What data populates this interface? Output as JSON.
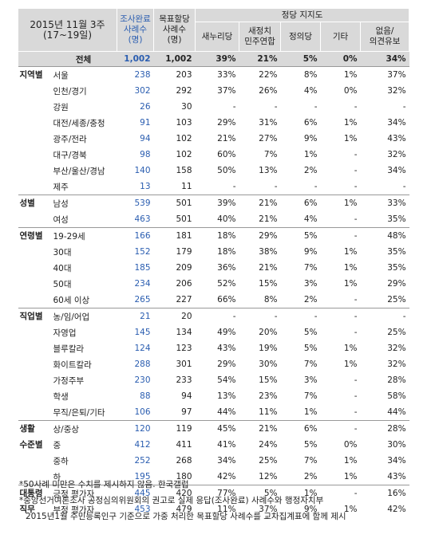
{
  "header": {
    "period": [
      "2015년 11월 3주",
      "(17~19일)"
    ],
    "completed": [
      "조사완료",
      "사례수",
      "(명)"
    ],
    "target": [
      "목표할당",
      "사례수",
      "(명)"
    ],
    "group_title": "정당 지지도",
    "parties": [
      "새누리당",
      "새정치\n민주연합",
      "정의당",
      "기타",
      "없음/\n의견유보"
    ]
  },
  "total": [
    "전체",
    "1,002",
    "1,002",
    "39%",
    "21%",
    "5%",
    "0%",
    "34%"
  ],
  "groups": [
    {
      "label": [
        "지역별"
      ],
      "rows": [
        [
          "서울",
          "238",
          "203",
          "33%",
          "22%",
          "8%",
          "1%",
          "37%"
        ],
        [
          "인천/경기",
          "302",
          "292",
          "37%",
          "26%",
          "4%",
          "0%",
          "32%"
        ],
        [
          "강원",
          "26",
          "30",
          "-",
          "-",
          "-",
          "-",
          "-"
        ],
        [
          "대전/세종/충청",
          "91",
          "103",
          "29%",
          "31%",
          "6%",
          "1%",
          "34%"
        ],
        [
          "광주/전라",
          "94",
          "102",
          "21%",
          "27%",
          "9%",
          "1%",
          "43%"
        ],
        [
          "대구/경북",
          "98",
          "102",
          "60%",
          "7%",
          "1%",
          "-",
          "32%"
        ],
        [
          "부산/울산/경남",
          "140",
          "158",
          "50%",
          "13%",
          "2%",
          "-",
          "34%"
        ],
        [
          "제주",
          "13",
          "11",
          "-",
          "-",
          "-",
          "-",
          "-"
        ]
      ]
    },
    {
      "label": [
        "성별"
      ],
      "rows": [
        [
          "남성",
          "539",
          "501",
          "39%",
          "21%",
          "6%",
          "1%",
          "33%"
        ],
        [
          "여성",
          "463",
          "501",
          "40%",
          "21%",
          "4%",
          "-",
          "35%"
        ]
      ]
    },
    {
      "label": [
        "연령별"
      ],
      "rows": [
        [
          "19-29세",
          "166",
          "181",
          "18%",
          "29%",
          "5%",
          "-",
          "48%"
        ],
        [
          "30대",
          "152",
          "179",
          "18%",
          "38%",
          "9%",
          "1%",
          "35%"
        ],
        [
          "40대",
          "185",
          "209",
          "36%",
          "21%",
          "7%",
          "1%",
          "35%"
        ],
        [
          "50대",
          "234",
          "206",
          "52%",
          "15%",
          "3%",
          "1%",
          "29%"
        ],
        [
          "60세 이상",
          "265",
          "227",
          "66%",
          "8%",
          "2%",
          "-",
          "25%"
        ]
      ]
    },
    {
      "label": [
        "직업별"
      ],
      "rows": [
        [
          "농/임/어업",
          "21",
          "20",
          "-",
          "-",
          "-",
          "-",
          "-"
        ],
        [
          "자영업",
          "145",
          "134",
          "49%",
          "20%",
          "5%",
          "-",
          "25%"
        ],
        [
          "블루칼라",
          "124",
          "123",
          "43%",
          "19%",
          "5%",
          "1%",
          "32%"
        ],
        [
          "화이트칼라",
          "288",
          "301",
          "29%",
          "30%",
          "7%",
          "1%",
          "32%"
        ],
        [
          "가정주부",
          "230",
          "233",
          "54%",
          "15%",
          "3%",
          "-",
          "28%"
        ],
        [
          "학생",
          "88",
          "94",
          "13%",
          "23%",
          "7%",
          "-",
          "58%"
        ],
        [
          "무직/은퇴/기타",
          "106",
          "97",
          "44%",
          "11%",
          "1%",
          "-",
          "44%"
        ]
      ]
    },
    {
      "label": [
        "생활",
        "수준별"
      ],
      "rows": [
        [
          "상/중상",
          "120",
          "119",
          "45%",
          "21%",
          "6%",
          "-",
          "28%"
        ],
        [
          "중",
          "412",
          "411",
          "41%",
          "24%",
          "5%",
          "0%",
          "30%"
        ],
        [
          "중하",
          "252",
          "268",
          "34%",
          "25%",
          "7%",
          "1%",
          "34%"
        ],
        [
          "하",
          "195",
          "180",
          "42%",
          "12%",
          "2%",
          "1%",
          "43%"
        ]
      ]
    },
    {
      "label": [
        "대통령",
        "직무"
      ],
      "rows": [
        [
          "긍정 평가자",
          "445",
          "420",
          "77%",
          "5%",
          "1%",
          "-",
          "16%"
        ],
        [
          "부정 평가자",
          "453",
          "479",
          "11%",
          "37%",
          "9%",
          "1%",
          "42%"
        ]
      ]
    }
  ],
  "footnotes": [
    "*50사례 미만은 수치를 제시하지 않음. 한국갤럽",
    "*중앙선거여론조사 공정심의위원회의 권고로 실제 응답(조사완료) 사례수와 행정자치부",
    "2015년1월 주민등록인구 기준으로 가중 처리한 목표할당 사례수를 교차집계표에 함께 제시"
  ]
}
